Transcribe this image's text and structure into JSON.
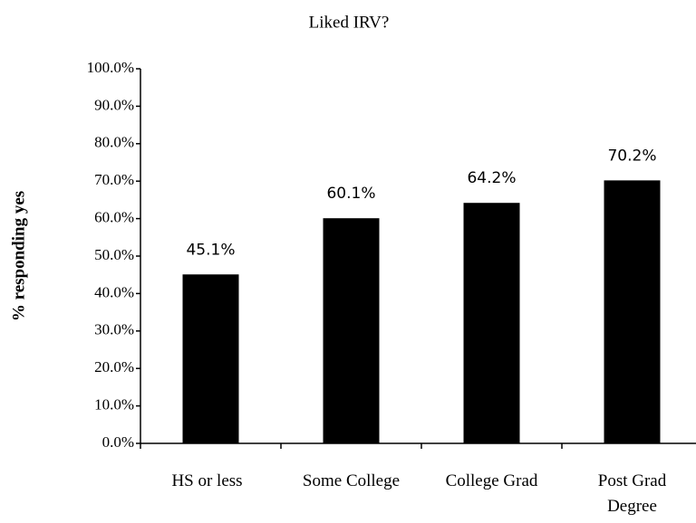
{
  "chart_data": {
    "type": "bar",
    "title": "Liked IRV?",
    "y_label": "% responding yes",
    "categories": [
      "HS or less",
      "Some College",
      "College Grad",
      "Post Grad Degree"
    ],
    "values": [
      45.1,
      60.1,
      64.2,
      70.2
    ],
    "value_labels": [
      "45.1%",
      "60.1%",
      "64.2%",
      "70.2%"
    ],
    "color": "#000000",
    "ylim": [
      0,
      100
    ],
    "yticks": [
      {
        "value": 0,
        "label": "0.0%"
      },
      {
        "value": 10,
        "label": "10.0%"
      },
      {
        "value": 20,
        "label": "20.0%"
      },
      {
        "value": 30,
        "label": "30.0%"
      },
      {
        "value": 40,
        "label": "40.0%"
      },
      {
        "value": 50,
        "label": "50.0%"
      },
      {
        "value": 60,
        "label": "60.0%"
      },
      {
        "value": 70,
        "label": "70.0%"
      },
      {
        "value": 80,
        "label": "80.0%"
      },
      {
        "value": 90,
        "label": "90.0%"
      },
      {
        "value": 100,
        "label": "100.0%"
      }
    ],
    "grid": false
  }
}
